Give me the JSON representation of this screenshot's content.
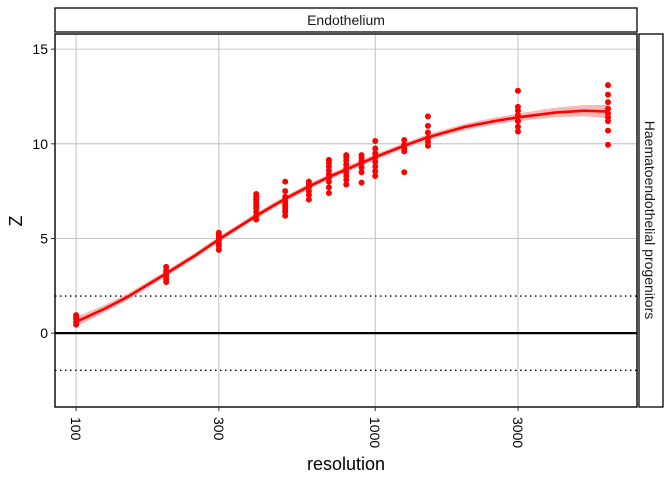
{
  "chart_data": {
    "type": "scatter",
    "top_strip": "Endothelium",
    "right_strip": "Haematoendothelial progenitors",
    "xlabel": "resolution",
    "ylabel": "Z",
    "x_scale": "log10",
    "xlim": [
      85,
      7500
    ],
    "ylim": [
      -3.9,
      15.8
    ],
    "x_ticks": [
      100,
      300,
      1000,
      3000
    ],
    "x_tick_labels": [
      "100",
      "300",
      "1000",
      "3000"
    ],
    "y_ticks": [
      0,
      5,
      10,
      15
    ],
    "y_tick_labels": [
      "0",
      "5",
      "10",
      "15"
    ],
    "grid": true,
    "hlines": [
      {
        "y": 0,
        "style": "solid"
      },
      {
        "y": 1.96,
        "style": "dotted"
      },
      {
        "y": -1.96,
        "style": "dotted"
      }
    ],
    "point_color": "#ff0000",
    "line_color": "#ff0000",
    "ribbon_color": "#f4a0a0",
    "points": [
      {
        "x": 100,
        "y": [
          0.45,
          0.6,
          0.75,
          0.85,
          0.95
        ]
      },
      {
        "x": 200,
        "y": [
          2.7,
          2.85,
          3.0,
          3.15,
          3.3,
          3.5
        ]
      },
      {
        "x": 300,
        "y": [
          4.4,
          4.6,
          4.75,
          4.9,
          5.05,
          5.2,
          5.3
        ]
      },
      {
        "x": 400,
        "y": [
          6.0,
          6.2,
          6.4,
          6.6,
          6.75,
          6.9,
          7.05,
          7.2,
          7.35
        ]
      },
      {
        "x": 500,
        "y": [
          6.2,
          6.4,
          6.55,
          6.7,
          6.85,
          7.0,
          7.2,
          7.5,
          8.0
        ]
      },
      {
        "x": 600,
        "y": [
          7.05,
          7.3,
          7.5,
          7.7,
          7.85,
          8.0
        ]
      },
      {
        "x": 700,
        "y": [
          7.4,
          7.7,
          8.0,
          8.2,
          8.4,
          8.6,
          8.8,
          9.0,
          9.15
        ]
      },
      {
        "x": 800,
        "y": [
          7.85,
          8.1,
          8.3,
          8.5,
          8.7,
          8.9,
          9.1,
          9.25,
          9.4
        ]
      },
      {
        "x": 900,
        "y": [
          7.95,
          8.5,
          8.75,
          9.0,
          9.1,
          9.25,
          9.4
        ]
      },
      {
        "x": 1000,
        "y": [
          8.3,
          8.55,
          8.8,
          9.05,
          9.3,
          9.5,
          9.75,
          10.15
        ]
      },
      {
        "x": 1250,
        "y": [
          8.5,
          9.6,
          9.75,
          9.95,
          10.2
        ]
      },
      {
        "x": 1500,
        "y": [
          9.9,
          10.1,
          10.3,
          10.6,
          10.95,
          11.45
        ]
      },
      {
        "x": 3000,
        "y": [
          10.65,
          10.9,
          11.2,
          11.5,
          11.75,
          11.95,
          12.8
        ]
      },
      {
        "x": 6000,
        "y": [
          9.95,
          10.7,
          11.2,
          11.4,
          11.6,
          11.85,
          12.2,
          12.6,
          13.1
        ]
      }
    ],
    "smooth_fit": {
      "x": [
        100,
        125,
        150,
        200,
        250,
        300,
        400,
        500,
        600,
        700,
        800,
        1000,
        1250,
        1500,
        2000,
        2500,
        3000,
        4000,
        5000,
        6000
      ],
      "y": [
        0.6,
        1.3,
        1.95,
        3.15,
        4.1,
        4.95,
        6.2,
        7.1,
        7.75,
        8.25,
        8.65,
        9.3,
        9.9,
        10.35,
        10.9,
        11.2,
        11.4,
        11.65,
        11.75,
        11.7
      ],
      "se": [
        0.25,
        0.2,
        0.18,
        0.15,
        0.15,
        0.15,
        0.15,
        0.15,
        0.15,
        0.15,
        0.15,
        0.15,
        0.15,
        0.16,
        0.17,
        0.18,
        0.2,
        0.25,
        0.3,
        0.35
      ]
    }
  }
}
